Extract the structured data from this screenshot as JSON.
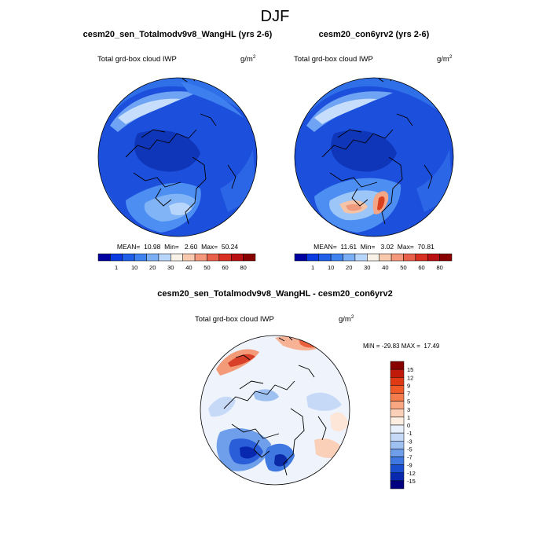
{
  "title": "DJF",
  "panels": [
    {
      "case_title": "cesm20_sen_Totalmodv9v8_WangHL (yrs 2-6)",
      "variable": "Total grd-box cloud IWP",
      "units_base": "g/m",
      "units_exp": "2",
      "stats_text": "MEAN=  10.98  Min=   2.60  Max=  50.24",
      "colorbar_labels": [
        "1",
        "10",
        "20",
        "30",
        "40",
        "50",
        "60",
        "80"
      ],
      "colorbar_colors": [
        "#0000a0",
        "#0a3be0",
        "#1f5fe8",
        "#3f82f0",
        "#7aaef6",
        "#b8d6fb",
        "#f7f1e8",
        "#f9c9ad",
        "#f4977a",
        "#e9604a",
        "#d83020",
        "#b81010",
        "#880000"
      ]
    },
    {
      "case_title": "cesm20_con6yrv2 (yrs 2-6)",
      "variable": "Total grd-box cloud IWP",
      "units_base": "g/m",
      "units_exp": "2",
      "stats_text": "MEAN=  11.61  Min=   3.02  Max=  70.81",
      "colorbar_labels": [
        "1",
        "10",
        "20",
        "30",
        "40",
        "50",
        "60",
        "80"
      ],
      "colorbar_colors": [
        "#0000a0",
        "#0a3be0",
        "#1f5fe8",
        "#3f82f0",
        "#7aaef6",
        "#b8d6fb",
        "#f7f1e8",
        "#f9c9ad",
        "#f4977a",
        "#e9604a",
        "#d83020",
        "#b81010",
        "#880000"
      ]
    }
  ],
  "diff": {
    "title": "cesm20_sen_Totalmodv9v8_WangHL - cesm20_con6yrv2",
    "variable": "Total grd-box cloud IWP",
    "units_base": "g/m",
    "units_exp": "2",
    "minmax_text": "MIN = -29.83 MAX =  17.49",
    "colorbar_labels": [
      "15",
      "12",
      "9",
      "7",
      "5",
      "3",
      "1",
      "0",
      "-1",
      "-3",
      "-5",
      "-7",
      "-9",
      "-12",
      "-15"
    ],
    "colorbar_colors": [
      "#880000",
      "#c01a0a",
      "#e03a14",
      "#f05a28",
      "#f57c4c",
      "#f9a682",
      "#fbd0b8",
      "#fdeee2",
      "#e8f0fb",
      "#c6daf8",
      "#9ec1f2",
      "#6f9eea",
      "#3f78e0",
      "#1a4fd0",
      "#0828b0",
      "#000080"
    ]
  },
  "chart_data": [
    {
      "type": "heatmap",
      "title": "cesm20_sen_Totalmodv9v8_WangHL (yrs 2-6)",
      "variable": "Total grd-box cloud IWP",
      "units": "g/m^2",
      "levels": [
        1,
        10,
        20,
        30,
        40,
        50,
        60,
        80
      ],
      "mean": 10.98,
      "min": 2.6,
      "max": 50.24
    },
    {
      "type": "heatmap",
      "title": "cesm20_con6yrv2 (yrs 2-6)",
      "variable": "Total grd-box cloud IWP",
      "units": "g/m^2",
      "levels": [
        1,
        10,
        20,
        30,
        40,
        50,
        60,
        80
      ],
      "mean": 11.61,
      "min": 3.02,
      "max": 70.81
    },
    {
      "type": "heatmap",
      "title": "cesm20_sen_Totalmodv9v8_WangHL - cesm20_con6yrv2",
      "variable": "Total grd-box cloud IWP",
      "units": "g/m^2",
      "levels": [
        -15,
        -12,
        -9,
        -7,
        -5,
        -3,
        -1,
        0,
        1,
        3,
        5,
        7,
        9,
        12,
        15
      ],
      "min": -29.83,
      "max": 17.49
    }
  ]
}
